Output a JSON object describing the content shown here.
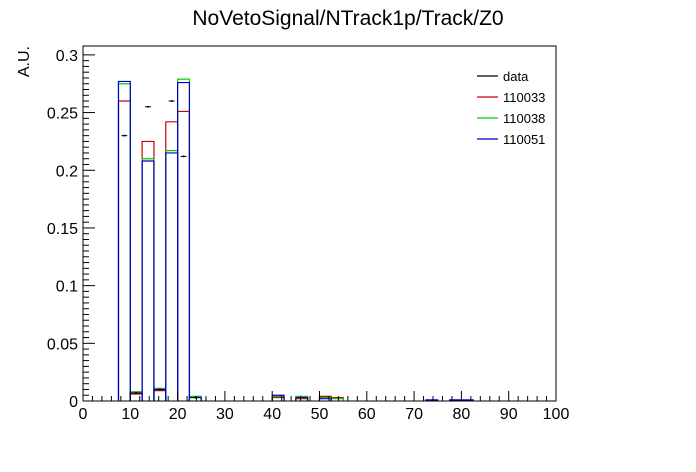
{
  "chart_data": {
    "type": "bar",
    "title": "NoVetoSignal/NTrack1p/Track/Z0",
    "xlabel": "",
    "ylabel": "A.U.",
    "xlim": [
      0,
      100
    ],
    "ylim": [
      0,
      0.3
    ],
    "x_ticks": [
      "0",
      "10",
      "20",
      "30",
      "40",
      "50",
      "60",
      "70",
      "80",
      "90",
      "100"
    ],
    "y_ticks": [
      "0",
      "0.05",
      "0.1",
      "0.15",
      "0.2",
      "0.25",
      "0.3"
    ],
    "bin_width": 2.5,
    "legend_position": "top-right",
    "grid": false,
    "series": [
      {
        "name": "data",
        "color": "#000000",
        "style": "points",
        "points": [
          {
            "x": 8.75,
            "y": 0.23
          },
          {
            "x": 11.25,
            "y": 0.007
          },
          {
            "x": 13.75,
            "y": 0.255
          },
          {
            "x": 16.25,
            "y": 0.01
          },
          {
            "x": 18.75,
            "y": 0.26
          },
          {
            "x": 21.25,
            "y": 0.212
          },
          {
            "x": 23.75,
            "y": 0.003
          }
        ]
      },
      {
        "name": "110033",
        "color": "#cc0000",
        "style": "hist",
        "bins": [
          {
            "lo": 7.5,
            "hi": 10,
            "y": 0.26
          },
          {
            "lo": 10,
            "hi": 12.5,
            "y": 0.006
          },
          {
            "lo": 12.5,
            "hi": 15,
            "y": 0.225
          },
          {
            "lo": 15,
            "hi": 17.5,
            "y": 0.009
          },
          {
            "lo": 17.5,
            "hi": 20,
            "y": 0.242
          },
          {
            "lo": 20,
            "hi": 22.5,
            "y": 0.251
          },
          {
            "lo": 22.5,
            "hi": 25,
            "y": 0.003
          },
          {
            "lo": 40,
            "hi": 42.5,
            "y": 0.003
          },
          {
            "lo": 45,
            "hi": 47.5,
            "y": 0.002
          },
          {
            "lo": 50,
            "hi": 52.5,
            "y": 0.004
          },
          {
            "lo": 52.5,
            "hi": 55,
            "y": 0.003
          }
        ]
      },
      {
        "name": "110038",
        "color": "#00cc00",
        "style": "hist",
        "bins": [
          {
            "lo": 7.5,
            "hi": 10,
            "y": 0.275
          },
          {
            "lo": 10,
            "hi": 12.5,
            "y": 0.008
          },
          {
            "lo": 12.5,
            "hi": 15,
            "y": 0.21
          },
          {
            "lo": 15,
            "hi": 17.5,
            "y": 0.011
          },
          {
            "lo": 17.5,
            "hi": 20,
            "y": 0.217
          },
          {
            "lo": 20,
            "hi": 22.5,
            "y": 0.279
          },
          {
            "lo": 22.5,
            "hi": 25,
            "y": 0.004
          },
          {
            "lo": 40,
            "hi": 42.5,
            "y": 0.004
          },
          {
            "lo": 45,
            "hi": 47.5,
            "y": 0.004
          },
          {
            "lo": 50,
            "hi": 52.5,
            "y": 0.003
          },
          {
            "lo": 52.5,
            "hi": 55,
            "y": 0.002
          }
        ]
      },
      {
        "name": "110051",
        "color": "#0000cc",
        "style": "hist",
        "bins": [
          {
            "lo": 7.5,
            "hi": 10,
            "y": 0.277
          },
          {
            "lo": 10,
            "hi": 12.5,
            "y": 0.007
          },
          {
            "lo": 12.5,
            "hi": 15,
            "y": 0.208
          },
          {
            "lo": 15,
            "hi": 17.5,
            "y": 0.01
          },
          {
            "lo": 17.5,
            "hi": 20,
            "y": 0.215
          },
          {
            "lo": 20,
            "hi": 22.5,
            "y": 0.276
          },
          {
            "lo": 22.5,
            "hi": 25,
            "y": 0.003
          },
          {
            "lo": 40,
            "hi": 42.5,
            "y": 0.005
          },
          {
            "lo": 45,
            "hi": 47.5,
            "y": 0.003
          },
          {
            "lo": 50,
            "hi": 52.5,
            "y": 0.002
          },
          {
            "lo": 72.5,
            "hi": 75,
            "y": 0.001
          },
          {
            "lo": 77.5,
            "hi": 80,
            "y": 0.001
          },
          {
            "lo": 80,
            "hi": 82.5,
            "y": 0.001
          }
        ]
      }
    ]
  }
}
